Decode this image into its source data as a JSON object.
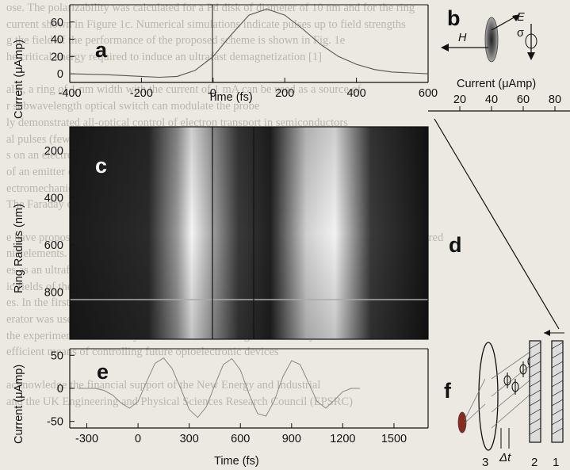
{
  "background_text": [
    "ose. The polarizability was calculated for a Pd disk of diameter of 10 nm and for the ring",
    "current shown in Figure 1c. Numerical simulations indicate pulses up to field strengths",
    "g the field of the performance of the proposed scheme is shown in Fig. 1e",
    "he critical energy required to induce an ultrafast demagnetization [1]",
    "",
    "ally, a ring of 1 nm width with the current of 1 mA can be used as a source of",
    "r subwavelength optical switch can modulate the probe",
    "ly demonstrated all-optical control of electron transport in semiconductors",
    "al pulses (few cycle) can be used to generate ultrafast current pulses in microstructures",
    "s on an electronic chip. The current can flow within the ring structure",
    "of an emitter of pulsed terahertz radiation and of magnetic fields",
    "ectromechanical systems. The current pulses can also drive devices",
    "The Faraday optical rotation in magnetic materials is",
    "",
    "e have proposed a scheme of coherent control of electron currents in metal rings and structured",
    "nic elements. The proposed scheme is a powerful tool for generating",
    "es as an ultrafast optical element on chip. Their key potential",
    "ic fields of the current. The ultrafast magnetic field",
    "es. In the first demonstration of the ultrafast precessional magnetization reversal",
    "erator was used to deliver a fast magnetic field pulse to a magnetic film",
    "the experiment. The delivery of fast electric and magnetic fields by",
    "efficient means of controlling future optoelectronic devices",
    "",
    "acknowledge the financial support of the New Energy and Industrial",
    "and the UK Engineering and Physical Sciences Research Council (EPSRC)"
  ],
  "panels": [
    "a",
    "b",
    "c",
    "d",
    "e",
    "f"
  ],
  "panel_a": {
    "ylabel": "Current (μAmp)",
    "xlabel": "Time (fs)",
    "x_ticks": [
      "-400",
      "-200",
      "0",
      "200",
      "400",
      "600"
    ],
    "y_ticks": [
      "60",
      "40",
      "20",
      "0"
    ]
  },
  "panel_b": {
    "labels": [
      "H",
      "E",
      "σ"
    ]
  },
  "panel_c": {
    "ylabel": "Ring Radius (nm)",
    "y_ticks": [
      "200",
      "400",
      "600",
      "800"
    ]
  },
  "panel_d": {
    "xlabel": "Current (μAmp)",
    "x_ticks": [
      "20",
      "40",
      "60",
      "80"
    ]
  },
  "panel_e": {
    "ylabel": "Current (μAmp)",
    "xlabel": "Time (fs)",
    "x_ticks": [
      "-300",
      "0",
      "300",
      "600",
      "900",
      "1200",
      "1500"
    ],
    "y_ticks": [
      "50",
      "0",
      "-50"
    ]
  },
  "panel_f": {
    "labels": [
      "3",
      "Δt",
      "2",
      "1"
    ]
  },
  "chart_data": [
    {
      "type": "line",
      "panel": "a",
      "xlabel": "Time (fs)",
      "ylabel": "Current (μAmp)",
      "xlim": [
        -400,
        600
      ],
      "ylim": [
        -10,
        80
      ],
      "x": [
        -400,
        -300,
        -200,
        -150,
        -100,
        -50,
        0,
        50,
        100,
        150,
        200,
        250,
        300,
        350,
        400,
        450,
        500,
        550,
        600
      ],
      "y": [
        0,
        -1,
        -3,
        -4,
        -3,
        4,
        20,
        45,
        68,
        75,
        68,
        52,
        34,
        20,
        11,
        5,
        2,
        1,
        0
      ]
    },
    {
      "type": "heatmap",
      "panel": "c",
      "ylabel": "Ring Radius (nm)",
      "xlim": [
        -400,
        600
      ],
      "ylim": [
        1000,
        100
      ]
    },
    {
      "type": "line",
      "panel": "d",
      "xlabel": "Current (μAmp)",
      "xlim": [
        20,
        90
      ],
      "x": [
        20,
        90
      ],
      "y": [
        140,
        1000
      ]
    },
    {
      "type": "line",
      "panel": "e",
      "xlabel": "Time (fs)",
      "ylabel": "Current (μAmp)",
      "xlim": [
        -400,
        1700
      ],
      "ylim": [
        -60,
        60
      ],
      "x": [
        -350,
        -300,
        -250,
        -200,
        -150,
        -100,
        -50,
        0,
        50,
        100,
        150,
        200,
        250,
        300,
        350,
        400,
        450,
        500,
        550,
        600,
        650,
        700,
        750,
        800,
        850,
        900,
        950,
        1000,
        1050,
        1100,
        1150,
        1200,
        1250,
        1300
      ],
      "y": [
        0,
        0,
        0,
        -3,
        -10,
        -22,
        -30,
        -20,
        10,
        38,
        46,
        30,
        0,
        -32,
        -44,
        -28,
        5,
        36,
        45,
        28,
        -8,
        -38,
        -42,
        -18,
        18,
        42,
        36,
        8,
        -20,
        -30,
        -18,
        -5,
        0,
        0
      ]
    }
  ]
}
